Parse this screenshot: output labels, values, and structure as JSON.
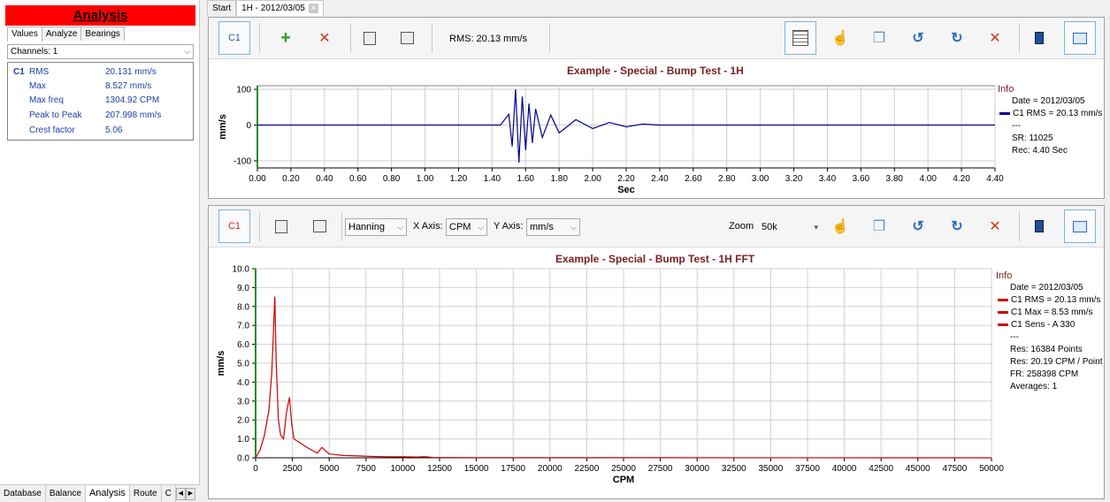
{
  "left": {
    "title": "Analysis",
    "tabs": [
      "Values",
      "Analyze",
      "Bearings"
    ],
    "channels_label": "Channels: 1",
    "values": {
      "channel": "C1",
      "rows": [
        {
          "label": "RMS",
          "value": "20.131 mm/s"
        },
        {
          "label": "Max",
          "value": "8.527 mm/s"
        },
        {
          "label": "Max freq",
          "value": "1304.92 CPM"
        },
        {
          "label": "Peak to Peak",
          "value": "207.998 mm/s"
        },
        {
          "label": "Crest factor",
          "value": "5.06"
        }
      ]
    },
    "bottom_tabs": [
      "Database",
      "Balance",
      "Analysis",
      "Route",
      "C"
    ]
  },
  "doc_tabs": {
    "start": "Start",
    "active": "1H - 2012/03/05"
  },
  "panel1": {
    "toolbar": {
      "c1": "C1",
      "rms": "RMS: 20.13 mm/s"
    },
    "info": {
      "head": "Info",
      "lines": [
        "Date = 2012/03/05",
        "C1 RMS = 20.13 mm/s",
        "---",
        "SR: 11025",
        "Rec: 4.40 Sec"
      ]
    }
  },
  "panel2": {
    "toolbar": {
      "c1": "C1",
      "window": "Hanning",
      "xaxis_label": "X Axis:",
      "xaxis": "CPM",
      "yaxis_label": "Y Axis:",
      "yaxis": "mm/s",
      "zoom_label": "Zoom",
      "zoom": "50k"
    },
    "info": {
      "head": "Info",
      "lines": [
        "Date = 2012/03/05",
        "C1 RMS = 20.13 mm/s",
        "C1 Max = 8.53 mm/s",
        "C1 Sens - A 330",
        "---",
        "Res: 16384 Points",
        "Res: 20.19 CPM / Point",
        "FR: 258398 CPM",
        "Averages: 1"
      ]
    }
  },
  "colors": {
    "time_series": "#00008b",
    "fft_series": "#cc0000",
    "title": "#7a1f1f",
    "title_bar": "#ff0000"
  },
  "chart_data": [
    {
      "type": "line",
      "title": "Example - Special - Bump Test - 1H",
      "xlabel": "Sec",
      "ylabel": "mm/s",
      "xlim": [
        0,
        4.4
      ],
      "ylim": [
        -120,
        110
      ],
      "xticks": [
        "0.00",
        "0.20",
        "0.40",
        "0.60",
        "0.80",
        "1.00",
        "1.20",
        "1.40",
        "1.60",
        "1.80",
        "2.00",
        "2.20",
        "2.40",
        "2.60",
        "2.80",
        "3.00",
        "3.20",
        "3.40",
        "3.60",
        "3.80",
        "4.00",
        "4.20",
        "4.40"
      ],
      "yticks": [
        "100",
        "0",
        "-100"
      ],
      "grid": true,
      "series": [
        {
          "name": "C1 RMS = 20.13 mm/s",
          "x": [
            0,
            1.45,
            1.5,
            1.52,
            1.54,
            1.56,
            1.58,
            1.6,
            1.62,
            1.64,
            1.66,
            1.7,
            1.75,
            1.8,
            1.9,
            2.0,
            2.1,
            2.2,
            2.3,
            2.4,
            4.4
          ],
          "y": [
            0,
            0,
            30,
            -60,
            100,
            -105,
            80,
            -70,
            60,
            -50,
            45,
            -35,
            28,
            -22,
            15,
            -10,
            7,
            -5,
            3,
            0,
            0
          ]
        }
      ]
    },
    {
      "type": "line",
      "title": "Example - Special - Bump Test - 1H FFT",
      "xlabel": "CPM",
      "ylabel": "mm/s",
      "xlim": [
        0,
        50000
      ],
      "ylim": [
        0,
        10
      ],
      "xticks": [
        "0",
        "2500",
        "5000",
        "7500",
        "10000",
        "12500",
        "15000",
        "17500",
        "20000",
        "22500",
        "25000",
        "27500",
        "30000",
        "32500",
        "35000",
        "37500",
        "40000",
        "42500",
        "45000",
        "47500",
        "50000"
      ],
      "yticks": [
        "0.0",
        "1.0",
        "2.0",
        "3.0",
        "4.0",
        "5.0",
        "6.0",
        "7.0",
        "8.0",
        "9.0",
        "10.0"
      ],
      "grid": true,
      "series": [
        {
          "name": "C1 Max = 8.53 mm/s",
          "x": [
            0,
            300,
            600,
            900,
            1100,
            1250,
            1305,
            1400,
            1550,
            1700,
            1900,
            2100,
            2300,
            2450,
            2600,
            2800,
            3200,
            3700,
            4200,
            4500,
            5000,
            6000,
            7000,
            8000,
            9000,
            10000,
            11000,
            11500,
            12000,
            15000,
            50000
          ],
          "y": [
            0,
            0.4,
            1.2,
            2.5,
            4.5,
            7.4,
            8.53,
            5.0,
            2.0,
            1.2,
            1.0,
            2.4,
            3.2,
            1.8,
            1.0,
            0.9,
            0.7,
            0.45,
            0.25,
            0.55,
            0.2,
            0.12,
            0.1,
            0.07,
            0.05,
            0.05,
            0.04,
            0.06,
            0.02,
            0.01,
            0
          ]
        }
      ]
    }
  ]
}
